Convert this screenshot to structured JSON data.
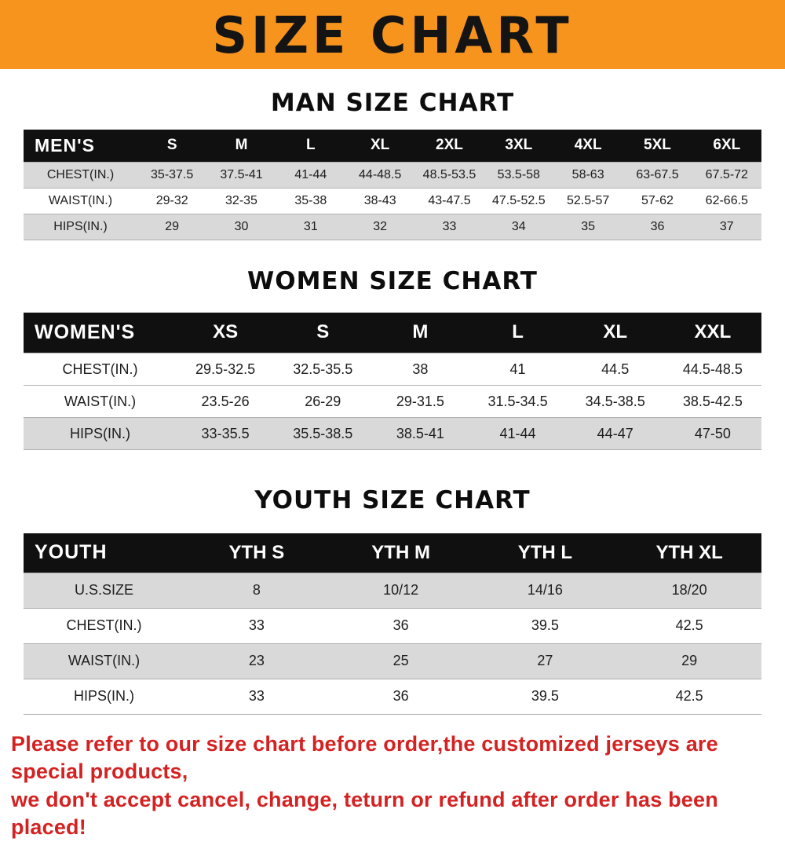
{
  "banner": {
    "title": "SIZE CHART",
    "bg_color": "#F7941E",
    "text_color": "#141414"
  },
  "sections": [
    {
      "heading": "MAN SIZE CHART",
      "table": {
        "header": [
          "MEN'S",
          "S",
          "M",
          "L",
          "XL",
          "2XL",
          "3XL",
          "4XL",
          "5XL",
          "6XL"
        ],
        "rows": [
          {
            "label": "CHEST(IN.)",
            "values": [
              "35-37.5",
              "37.5-41",
              "41-44",
              "44-48.5",
              "48.5-53.5",
              "53.5-58",
              "58-63",
              "63-67.5",
              "67.5-72"
            ]
          },
          {
            "label": "WAIST(IN.)",
            "values": [
              "29-32",
              "32-35",
              "35-38",
              "38-43",
              "43-47.5",
              "47.5-52.5",
              "52.5-57",
              "57-62",
              "62-66.5"
            ]
          },
          {
            "label": "HIPS(IN.)",
            "values": [
              "29",
              "30",
              "31",
              "32",
              "33",
              "34",
              "35",
              "36",
              "37"
            ]
          }
        ]
      }
    },
    {
      "heading": "WOMEN SIZE CHART",
      "table": {
        "header": [
          "WOMEN'S",
          "XS",
          "S",
          "M",
          "L",
          "XL",
          "XXL"
        ],
        "rows": [
          {
            "label": "CHEST(IN.)",
            "values": [
              "29.5-32.5",
              "32.5-35.5",
              "38",
              "41",
              "44.5",
              "44.5-48.5"
            ]
          },
          {
            "label": "WAIST(IN.)",
            "values": [
              "23.5-26",
              "26-29",
              "29-31.5",
              "31.5-34.5",
              "34.5-38.5",
              "38.5-42.5"
            ]
          },
          {
            "label": "HIPS(IN.)",
            "values": [
              "33-35.5",
              "35.5-38.5",
              "38.5-41",
              "41-44",
              "44-47",
              "47-50"
            ]
          }
        ]
      }
    },
    {
      "heading": "YOUTH SIZE CHART",
      "table": {
        "header": [
          "YOUTH",
          "YTH S",
          "YTH M",
          "YTH L",
          "YTH XL"
        ],
        "rows": [
          {
            "label": "U.S.SIZE",
            "values": [
              "8",
              "10/12",
              "14/16",
              "18/20"
            ]
          },
          {
            "label": "CHEST(IN.)",
            "values": [
              "33",
              "36",
              "39.5",
              "42.5"
            ]
          },
          {
            "label": "WAIST(IN.)",
            "values": [
              "23",
              "25",
              "27",
              "29"
            ]
          },
          {
            "label": "HIPS(IN.)",
            "values": [
              "33",
              "36",
              "39.5",
              "42.5"
            ]
          }
        ]
      }
    }
  ],
  "footer": {
    "line1": "Please refer to our size chart before order,the customized jerseys are special products,",
    "line2": "we don't accept cancel, change, teturn or refund after order has been placed!",
    "text_color": "#d42222"
  }
}
